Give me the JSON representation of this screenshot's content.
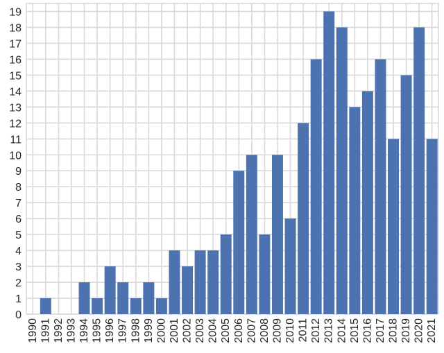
{
  "chart_data": {
    "type": "bar",
    "title": "",
    "xlabel": "",
    "ylabel": "",
    "categories": [
      "1990",
      "1991",
      "1992",
      "1993",
      "1994",
      "1995",
      "1996",
      "1997",
      "1998",
      "1999",
      "2000",
      "2001",
      "2002",
      "2003",
      "2004",
      "2005",
      "2006",
      "2007",
      "2008",
      "2009",
      "2010",
      "2011",
      "2012",
      "2013",
      "2014",
      "2015",
      "2016",
      "2017",
      "2018",
      "2019",
      "2020",
      "2021"
    ],
    "values": [
      0,
      1,
      0,
      0,
      2,
      1,
      3,
      2,
      1,
      2,
      1,
      4,
      3,
      4,
      4,
      5,
      9,
      10,
      5,
      10,
      6,
      12,
      16,
      19,
      18,
      13,
      14,
      16,
      11,
      15,
      18,
      11
    ],
    "ylim": [
      0,
      19.5
    ],
    "yticks": [
      0,
      1,
      2,
      3,
      4,
      5,
      6,
      7,
      8,
      9,
      10,
      11,
      12,
      13,
      14,
      15,
      16,
      17,
      18,
      19
    ],
    "grid": true,
    "bar_color": "#4c72b0",
    "grid_color": "#d9d9d9",
    "background": "#ffffff"
  }
}
